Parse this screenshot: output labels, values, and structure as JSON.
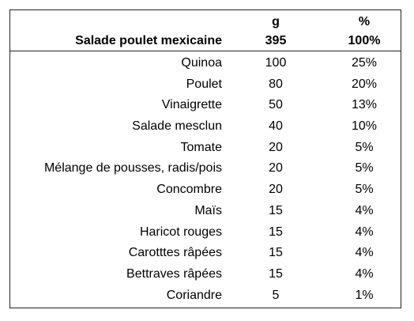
{
  "table": {
    "title": "Salade poulet mexicaine",
    "grams_unit": "g",
    "grams_total": "395",
    "percent_unit": "%",
    "percent_total": "100%",
    "rows": [
      {
        "ingredient": "Quinoa",
        "grams": "100",
        "percent": "25%"
      },
      {
        "ingredient": "Poulet",
        "grams": "80",
        "percent": "20%"
      },
      {
        "ingredient": "Vinaigrette",
        "grams": "50",
        "percent": "13%"
      },
      {
        "ingredient": "Salade mesclun",
        "grams": "40",
        "percent": "10%"
      },
      {
        "ingredient": "Tomate",
        "grams": "20",
        "percent": "5%"
      },
      {
        "ingredient": "Mélange de pousses, radis/pois",
        "grams": "20",
        "percent": "5%"
      },
      {
        "ingredient": "Concombre",
        "grams": "20",
        "percent": "5%"
      },
      {
        "ingredient": "Maïs",
        "grams": "15",
        "percent": "4%"
      },
      {
        "ingredient": "Haricot rouges",
        "grams": "15",
        "percent": "4%"
      },
      {
        "ingredient": "Carotttes râpées",
        "grams": "15",
        "percent": "4%"
      },
      {
        "ingredient": "Bettraves râpées",
        "grams": "15",
        "percent": "4%"
      },
      {
        "ingredient": "Coriandre",
        "grams": "5",
        "percent": "1%"
      }
    ]
  }
}
